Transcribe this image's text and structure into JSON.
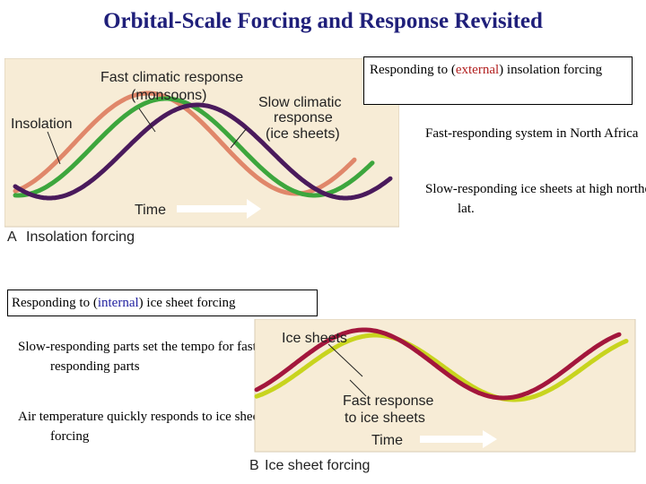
{
  "title": "Orbital-Scale Forcing and Response Revisited",
  "panel_a": {
    "label_fast": "Fast climatic response",
    "label_fast_paren": "(monsoons)",
    "label_slow_1": "Slow climatic",
    "label_slow_2": "response",
    "label_slow_3": "(ice sheets)",
    "label_insolation": "Insolation",
    "label_time": "Time",
    "letter": "A",
    "caption": "Insolation forcing"
  },
  "panel_b": {
    "label_ice": "Ice sheets",
    "label_fast_1": "Fast response",
    "label_fast_2": "to ice sheets",
    "label_time": "Time",
    "letter": "B",
    "caption": "Ice sheet forcing"
  },
  "right_text": {
    "box_pre": "Responding to (",
    "box_key": "external",
    "box_post": ") insolation forcing",
    "fast": "Fast-responding system in North Africa",
    "slow": "Slow-responding ice sheets at high northern lat."
  },
  "left_text": {
    "box_pre": "Responding to (",
    "box_key": "internal",
    "box_post": ") ice sheet forcing",
    "tempo": "Slow-responding parts set the tempo for fast-responding parts",
    "air": "Air temperature quickly responds to ice sheet forcing"
  },
  "colors": {
    "insolation": "#e0876a",
    "fast": "#3da63d",
    "slow": "#4a1a5c",
    "ice": "#a3163c",
    "fast_b": "#c8d41e",
    "panel_bg": "#f7ecd6"
  }
}
